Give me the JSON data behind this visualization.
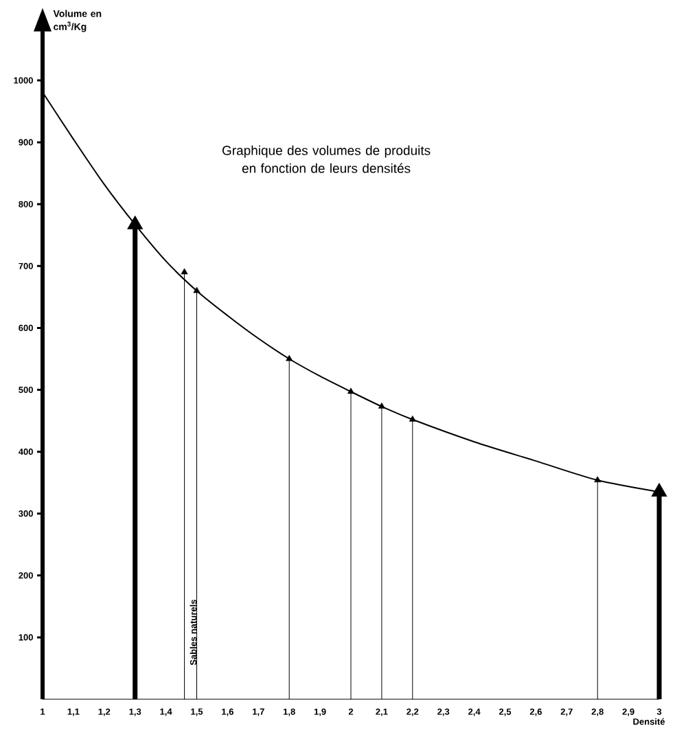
{
  "chart_data": {
    "type": "line",
    "title": "Graphique des volumes de produits en fonction de leurs densités",
    "xlabel": "Densité",
    "ylabel": "Volume en cm$^{3}$/Kg",
    "xlim": [
      1,
      3
    ],
    "ylim": [
      0,
      1080
    ],
    "xticks": [
      1,
      {
        "value": 1.1,
        "label": "1,1"
      },
      {
        "value": 1.2,
        "label": "1,2"
      },
      {
        "value": 1.3,
        "label": "1,3"
      },
      {
        "value": 1.4,
        "label": "1,4"
      },
      {
        "value": 1.5,
        "label": "1,5"
      },
      {
        "value": 1.6,
        "label": "1,6"
      },
      {
        "value": 1.7,
        "label": "1,7"
      },
      {
        "value": 1.8,
        "label": "1,8"
      },
      {
        "value": 1.9,
        "label": "1,9"
      },
      2,
      {
        "value": 2.1,
        "label": "2,1"
      },
      {
        "value": 2.2,
        "label": "2,2"
      },
      {
        "value": 2.3,
        "label": "2,3"
      },
      {
        "value": 2.4,
        "label": "2,4"
      },
      {
        "value": 2.5,
        "label": "2,5"
      },
      {
        "value": 2.6,
        "label": "2,6"
      },
      {
        "value": 2.7,
        "label": "2,7"
      },
      {
        "value": 2.8,
        "label": "2,8"
      },
      {
        "value": 2.9,
        "label": "2,9"
      },
      3
    ],
    "yticks": [
      100,
      200,
      300,
      400,
      500,
      600,
      700,
      800,
      900,
      1000
    ],
    "series": [
      {
        "color": "#000000",
        "x": [
          1,
          1.1,
          1.2,
          1.3,
          1.4,
          1.5,
          1.6,
          1.7,
          1.8,
          1.9,
          2,
          2.1,
          2.2,
          2.4,
          2.6,
          2.8,
          3
        ],
        "values": [
          981,
          905,
          832,
          767,
          708,
          660,
          620,
          583,
          550,
          522,
          497,
          473,
          452,
          416,
          385,
          354,
          335
        ]
      },
      {
        "type": "lollipop",
        "marker": "triangle",
        "color": "#000000",
        "x": [
          1.3,
          3
        ],
        "values": [
          767,
          335
        ]
      },
      {
        "type": "lollipop",
        "marker": "triangle",
        "color": "#000000",
        "x": [
          1.46,
          1.5,
          1.8,
          2,
          2.1,
          2.2,
          2.8
        ],
        "values": [
          690,
          660,
          550,
          497,
          473,
          452,
          354
        ]
      }
    ],
    "annotations": [
      "Sables naturels"
    ]
  }
}
